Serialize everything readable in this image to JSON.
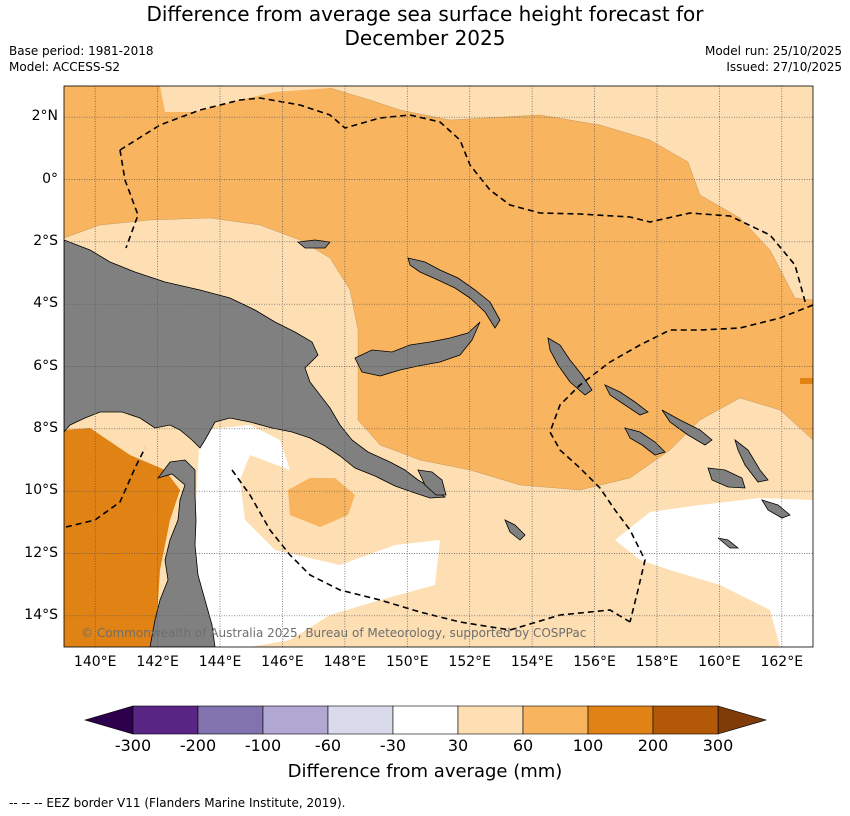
{
  "title_line1": "Difference from average sea surface height forecast for",
  "title_line2": "December 2025",
  "meta_left": [
    "Base period: 1981-2018",
    "Model: ACCESS-S2"
  ],
  "meta_right": [
    "Model run: 25/10/2025",
    "Issued: 27/10/2025"
  ],
  "map": {
    "lon_range": [
      139,
      163
    ],
    "lat_range": [
      -15,
      3
    ],
    "lat_ticks": [
      {
        "value": 2,
        "label": "2°N"
      },
      {
        "value": 0,
        "label": "0°"
      },
      {
        "value": -2,
        "label": "2°S"
      },
      {
        "value": -4,
        "label": "4°S"
      },
      {
        "value": -6,
        "label": "6°S"
      },
      {
        "value": -8,
        "label": "8°S"
      },
      {
        "value": -10,
        "label": "10°S"
      },
      {
        "value": -12,
        "label": "12°S"
      },
      {
        "value": -14,
        "label": "14°S"
      }
    ],
    "lon_ticks": [
      {
        "value": 140,
        "label": "140°E"
      },
      {
        "value": 142,
        "label": "142°E"
      },
      {
        "value": 144,
        "label": "144°E"
      },
      {
        "value": 146,
        "label": "146°E"
      },
      {
        "value": 148,
        "label": "148°E"
      },
      {
        "value": 150,
        "label": "150°E"
      },
      {
        "value": 152,
        "label": "152°E"
      },
      {
        "value": 154,
        "label": "154°E"
      },
      {
        "value": 156,
        "label": "156°E"
      },
      {
        "value": 158,
        "label": "158°E"
      },
      {
        "value": 160,
        "label": "160°E"
      },
      {
        "value": 162,
        "label": "162°E"
      }
    ],
    "land_color": "#808080",
    "copyright": "© Commonwealth of Australia 2025, Bureau of Meteorology, supported by COSPPac"
  },
  "colorbar": {
    "title": "Difference from average (mm)",
    "ticks": [
      "-300",
      "-200",
      "-100",
      "-60",
      "-30",
      "30",
      "60",
      "100",
      "200",
      "300"
    ],
    "colors": [
      "#5a2686",
      "#8273ae",
      "#b1a8d3",
      "#d9dbed",
      "#ffffff",
      "#fddfb3",
      "#f8b45e",
      "#e08214",
      "#b35806"
    ],
    "under_color": "#2d004b",
    "over_color": "#7f3b08"
  },
  "footer": "-- -- -- EEZ border V11 (Flanders Marine Institute, 2019)."
}
